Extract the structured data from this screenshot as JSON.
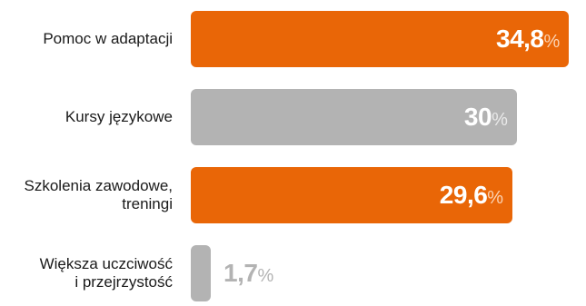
{
  "chart_data": {
    "type": "bar",
    "orientation": "horizontal",
    "categories": [
      [
        "Pomoc w adaptacji"
      ],
      [
        "Kursy językowe"
      ],
      [
        "Szkolenia zawodowe,",
        "treningi"
      ],
      [
        "Większa uczciwość",
        "i przejrzystość"
      ]
    ],
    "values": [
      34.8,
      30,
      29.6,
      1.7
    ],
    "value_labels": [
      "34,8",
      "30",
      "29,6",
      "1,7"
    ],
    "unit": "%",
    "bar_colors": [
      "#e96607",
      "#b3b3b3",
      "#e96607",
      "#b3b3b3"
    ],
    "value_label_colors": [
      "#ffffff",
      "#ffffff",
      "#ffffff",
      "#b3b3b3"
    ],
    "unit_colors": [
      "#fbd3b4",
      "#e9e9e9",
      "#fbd3b4",
      "#b3b3b3"
    ],
    "xlim": [
      0,
      37.2
    ],
    "grid": false,
    "legend": "none"
  }
}
